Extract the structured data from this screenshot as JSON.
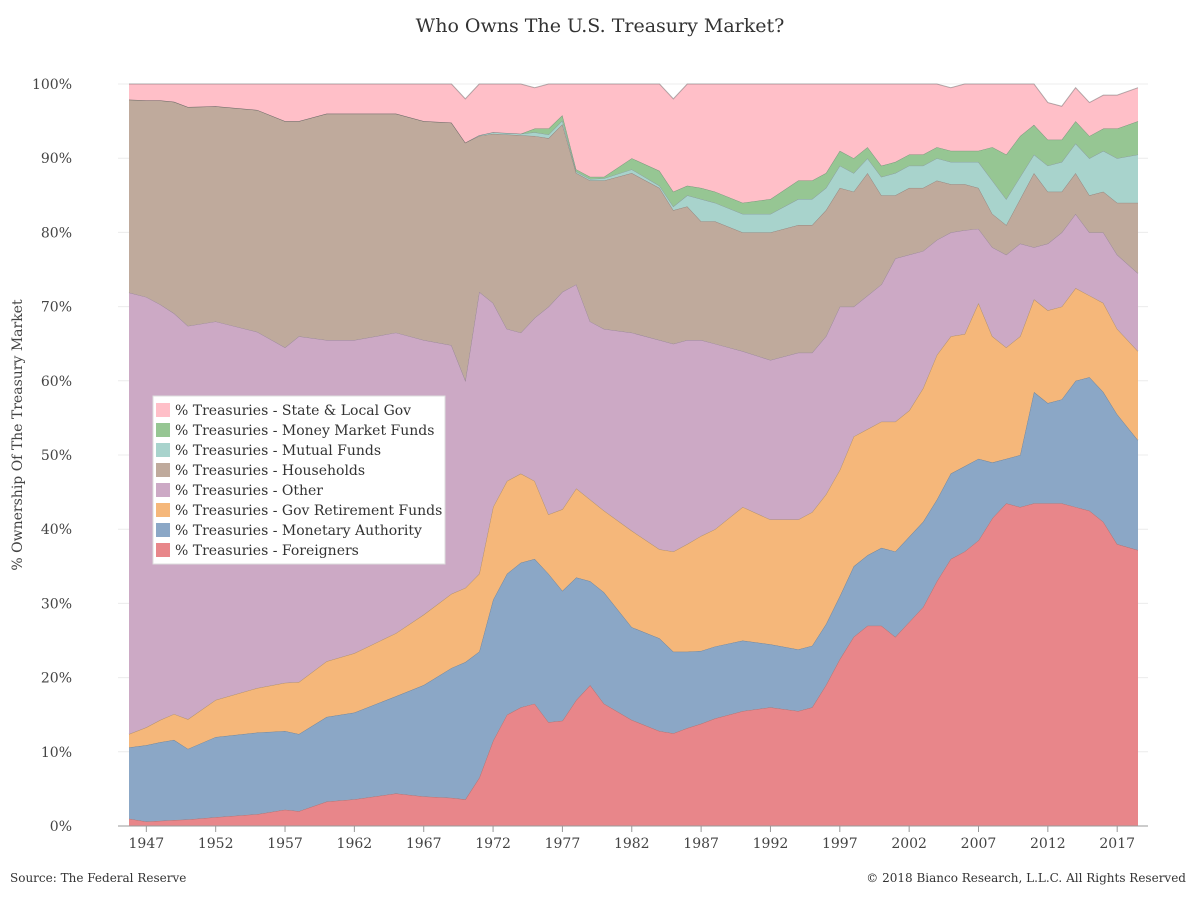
{
  "footer": {
    "source": "Source: The Federal Reserve",
    "copyright": "© 2018 Bianco Research, L.L.C. All Rights Reserved"
  },
  "chart_data": {
    "type": "area",
    "stacked": true,
    "title": "Who Owns The U.S. Treasury Market?",
    "ylabel": "% Ownership Of The Treasury Market",
    "xlabel": "",
    "ylim": [
      0,
      100
    ],
    "xlim": [
      1945.75,
      2018.5
    ],
    "y_ticks": [
      0,
      10,
      20,
      30,
      40,
      50,
      60,
      70,
      80,
      90,
      100
    ],
    "y_tick_format": "%",
    "x_ticks": [
      1947,
      1952,
      1957,
      1962,
      1967,
      1972,
      1977,
      1982,
      1987,
      1992,
      1997,
      2002,
      2007,
      2012,
      2017
    ],
    "grid": "horizontal",
    "legend_position": "left-middle",
    "x": [
      1945.75,
      1947,
      1948,
      1949,
      1950,
      1952,
      1955,
      1957,
      1958,
      1960,
      1962,
      1965,
      1967,
      1969,
      1970,
      1971,
      1972,
      1973,
      1974,
      1975,
      1976,
      1977,
      1978,
      1979,
      1980,
      1982,
      1984,
      1985,
      1986,
      1987,
      1988,
      1990,
      1992,
      1994,
      1995,
      1996,
      1997,
      1998,
      1999,
      2000,
      2001,
      2002,
      2003,
      2004,
      2005,
      2006,
      2007,
      2008,
      2009,
      2010,
      2011,
      2012,
      2013,
      2014,
      2015,
      2016,
      2017,
      2018.5
    ],
    "series": [
      {
        "name": "% Treasuries - Foreigners",
        "color": "#e8868a",
        "values": [
          1,
          0.6,
          0.7,
          0.8,
          0.9,
          1.2,
          1.6,
          2.2,
          2.0,
          3.3,
          3.6,
          4.4,
          4.0,
          3.8,
          3.6,
          6.5,
          11.5,
          15.0,
          16.0,
          16.5,
          14.0,
          14.2,
          17.0,
          19.0,
          16.5,
          14.3,
          12.8,
          12.5,
          13.2,
          13.8,
          14.5,
          15.5,
          16.0,
          15.5,
          16.0,
          19.0,
          22.5,
          25.5,
          27.0,
          27.0,
          25.5,
          27.5,
          29.5,
          33.0,
          36.0,
          37.0,
          38.5,
          41.5,
          43.5,
          43.0,
          43.5,
          43.5,
          43.5,
          43.0,
          42.5,
          41.0,
          38.0,
          37.2
        ]
      },
      {
        "name": "% Treasuries - Monetary Authority",
        "color": "#8ba7c6",
        "values": [
          9.6,
          10.3,
          10.6,
          10.8,
          9.5,
          10.8,
          11.0,
          10.6,
          10.4,
          11.4,
          11.7,
          13.1,
          15.0,
          17.5,
          18.5,
          17.0,
          19.0,
          19.0,
          19.5,
          19.5,
          20.0,
          17.5,
          16.5,
          14.0,
          15.0,
          12.5,
          12.5,
          11.0,
          10.3,
          9.8,
          9.7,
          9.5,
          8.5,
          8.3,
          8.3,
          8.2,
          8.5,
          9.5,
          9.5,
          10.5,
          11.5,
          11.5,
          11.5,
          11.0,
          11.5,
          11.5,
          11.0,
          7.5,
          6.0,
          7.0,
          15.0,
          13.5,
          14.0,
          17.0,
          18.0,
          17.5,
          17.5,
          14.8
        ]
      },
      {
        "name": "% Treasuries - Gov Retirement Funds",
        "color": "#f5b77a",
        "values": [
          1.8,
          2.4,
          3.0,
          3.5,
          4.0,
          5.0,
          6.0,
          6.5,
          7.0,
          7.5,
          8.0,
          8.5,
          9.5,
          10.0,
          10.0,
          10.5,
          12.5,
          12.5,
          12.0,
          10.5,
          8.0,
          11.0,
          12.0,
          11.0,
          11.0,
          13.0,
          12.0,
          13.5,
          14.5,
          15.5,
          15.8,
          18.0,
          16.8,
          17.5,
          18.0,
          17.5,
          17.0,
          17.5,
          17.0,
          17.0,
          17.5,
          17.0,
          18.0,
          19.5,
          18.5,
          17.8,
          21.0,
          17.0,
          15.0,
          16.0,
          12.5,
          12.5,
          12.5,
          12.5,
          11.0,
          12.0,
          11.5,
          12.0
        ]
      },
      {
        "name": "% Treasuries - Other",
        "color": "#cca9c5",
        "values": [
          59.5,
          58,
          56,
          54,
          53,
          51,
          48,
          45.2,
          46.6,
          43.3,
          42.2,
          40.5,
          37.0,
          33.5,
          28.0,
          38.0,
          27.5,
          20.5,
          19.0,
          22.0,
          28.0,
          29.3,
          27.5,
          24.0,
          24.5,
          26.7,
          28.2,
          28.0,
          27.5,
          26.4,
          25.0,
          21.0,
          21.5,
          22.5,
          21.5,
          21.3,
          22.0,
          17.5,
          18.0,
          18.5,
          22.0,
          21.0,
          18.5,
          15.5,
          14.0,
          14.0,
          10.0,
          12.0,
          12.5,
          12.5,
          7.0,
          9.0,
          10.0,
          10.0,
          8.5,
          9.5,
          10.0,
          10.5
        ]
      },
      {
        "name": "% Treasuries - Households",
        "color": "#bfaa9c",
        "values": [
          26,
          26.5,
          27.5,
          28.5,
          29.5,
          29,
          29.9,
          30.5,
          29.0,
          30.5,
          30.5,
          29.5,
          29.5,
          30.0,
          32.0,
          21.0,
          22.8,
          26.2,
          26.6,
          24.5,
          22.7,
          22.6,
          15.0,
          19.0,
          20.0,
          21.5,
          20.5,
          18.0,
          18.0,
          16.0,
          16.5,
          16.0,
          17.2,
          17.2,
          17.2,
          17.0,
          16.0,
          15.5,
          16.5,
          12.0,
          8.5,
          9.0,
          8.5,
          8.0,
          6.5,
          6.2,
          5.5,
          4.5,
          4.0,
          6.0,
          10.0,
          7.0,
          5.5,
          5.5,
          5.0,
          5.5,
          7.0,
          9.5
        ]
      },
      {
        "name": "% Treasuries - Mutual Funds",
        "color": "#a8d3cc",
        "values": [
          0,
          0,
          0,
          0,
          0,
          0,
          0,
          0,
          0,
          0,
          0,
          0,
          0,
          0,
          0,
          0.1,
          0.2,
          0.2,
          0.2,
          0.5,
          0.5,
          0.5,
          0.2,
          0.2,
          0.3,
          0.5,
          0.3,
          0.5,
          1.5,
          3.0,
          2.5,
          2.5,
          2.5,
          3.5,
          3.5,
          3.0,
          3.0,
          2.5,
          2.0,
          2.5,
          3.0,
          3.0,
          3.0,
          3.0,
          3.0,
          3.0,
          3.5,
          4.5,
          3.5,
          3.0,
          2.5,
          3.5,
          4.0,
          4.0,
          5.0,
          5.5,
          6.0,
          6.5
        ]
      },
      {
        "name": "% Treasuries - Money Market Funds",
        "color": "#96c693",
        "values": [
          0,
          0,
          0,
          0,
          0,
          0,
          0,
          0,
          0,
          0,
          0,
          0,
          0,
          0,
          0,
          0,
          0,
          0,
          0,
          0.5,
          0.8,
          0.7,
          0.3,
          0.3,
          0.2,
          1.5,
          2.0,
          2.0,
          1.3,
          1.5,
          1.5,
          1.5,
          2.0,
          2.5,
          2.5,
          2.0,
          2.0,
          2.0,
          1.5,
          1.5,
          1.5,
          1.5,
          1.5,
          1.5,
          1.5,
          1.5,
          1.5,
          4.5,
          6.0,
          5.5,
          4.0,
          3.5,
          3.0,
          3.0,
          3.0,
          3.0,
          4.0,
          4.5
        ]
      },
      {
        "name": "% Treasuries - State & Local Gov",
        "color": "#ffbfc8",
        "values": [
          2.1,
          2.2,
          2.2,
          2.4,
          3.1,
          3.0,
          3.5,
          5.0,
          5.0,
          4.0,
          4.0,
          4.0,
          5.0,
          5.2,
          5.9,
          6.9,
          6.5,
          6.6,
          6.7,
          5.5,
          6.0,
          5.2,
          12.5,
          12.5,
          12.5,
          10.0,
          11.7,
          12.5,
          14.2,
          14.0,
          14.5,
          16.0,
          15.5,
          13.0,
          13.0,
          12.0,
          9.5,
          10.0,
          9.0,
          11.0,
          10.5,
          9.5,
          9.5,
          8.5,
          8.5,
          9.0,
          10.0,
          8.5,
          9.5,
          7.0,
          5.5,
          5.0,
          4.5,
          4.5,
          4.5,
          4.5,
          4.5,
          4.5
        ]
      }
    ]
  }
}
